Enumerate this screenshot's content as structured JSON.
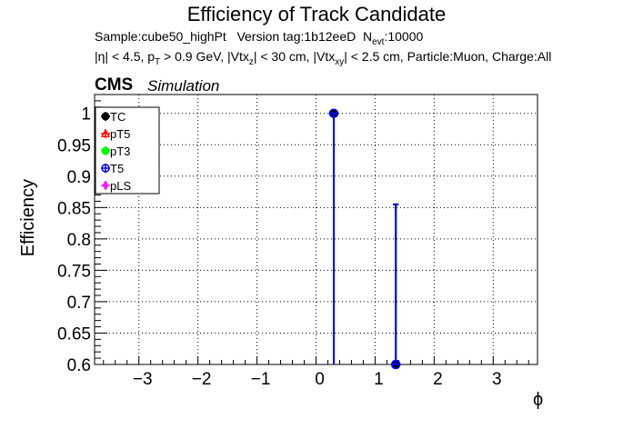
{
  "header": {
    "title": "Efficiency of Track Candidate",
    "subtitle_line1": {
      "sample": "Sample:cube50_highPt",
      "version": "Version tag:1b12eeD",
      "nevt_prefix": "N",
      "nevt_sub": "evt",
      "nevt_value": ":10000"
    },
    "subtitle_line2": {
      "p1": "|η| < 4.5, p",
      "s1": "T",
      "p2": " > 0.9 GeV, |Vtx",
      "s2": "z",
      "p3": "| < 30 cm, |Vtx",
      "s3": "xy",
      "p4": "| < 2.5 cm, Particle:Muon, Charge:All"
    },
    "cms": "CMS",
    "simulation": "Simulation"
  },
  "chart_data": {
    "type": "scatter",
    "xlabel": "ϕ",
    "ylabel": "Efficiency",
    "xlim": [
      -3.75,
      3.75
    ],
    "ylim": [
      0.6,
      1.03
    ],
    "x_ticks": [
      -3,
      -2,
      -1,
      0,
      1,
      2,
      3
    ],
    "x_tick_labels": [
      "−3",
      "−2",
      "−1",
      "0",
      "1",
      "2",
      "3"
    ],
    "y_ticks": [
      0.6,
      0.65,
      0.7,
      0.75,
      0.8,
      0.85,
      0.9,
      0.95,
      1
    ],
    "y_tick_labels": [
      "0.6",
      "0.65",
      "0.7",
      "0.75",
      "0.8",
      "0.85",
      "0.9",
      "0.95",
      "1"
    ],
    "grid": true,
    "legend_position": "top-left",
    "series": [
      {
        "name": "TC",
        "color": "#000000",
        "marker": "filled-circle",
        "points": [
          {
            "x": 0.3,
            "x_err": 0.08,
            "y": 1.0,
            "y_err_low": 1.0,
            "y_err_high": 0.0
          },
          {
            "x": 1.35,
            "x_err": 0.08,
            "y": 0.6,
            "y_err_low": 0.0,
            "y_err_high": 0.255
          }
        ]
      },
      {
        "name": "pT5",
        "color": "#ff0000",
        "marker": "open-triangle",
        "points": []
      },
      {
        "name": "pT3",
        "color": "#00ff00",
        "marker": "filled-circle",
        "points": []
      },
      {
        "name": "T5",
        "color": "#0000ff",
        "marker": "open-circle",
        "points": [
          {
            "x": 0.3,
            "x_err": 0.08,
            "y": 1.0,
            "y_err_low": 1.0,
            "y_err_high": 0.0
          },
          {
            "x": 1.35,
            "x_err": 0.08,
            "y": 0.6,
            "y_err_low": 0.0,
            "y_err_high": 0.255
          }
        ]
      },
      {
        "name": "pLS",
        "color": "#ff00ff",
        "marker": "open-diamond",
        "points": []
      }
    ]
  }
}
